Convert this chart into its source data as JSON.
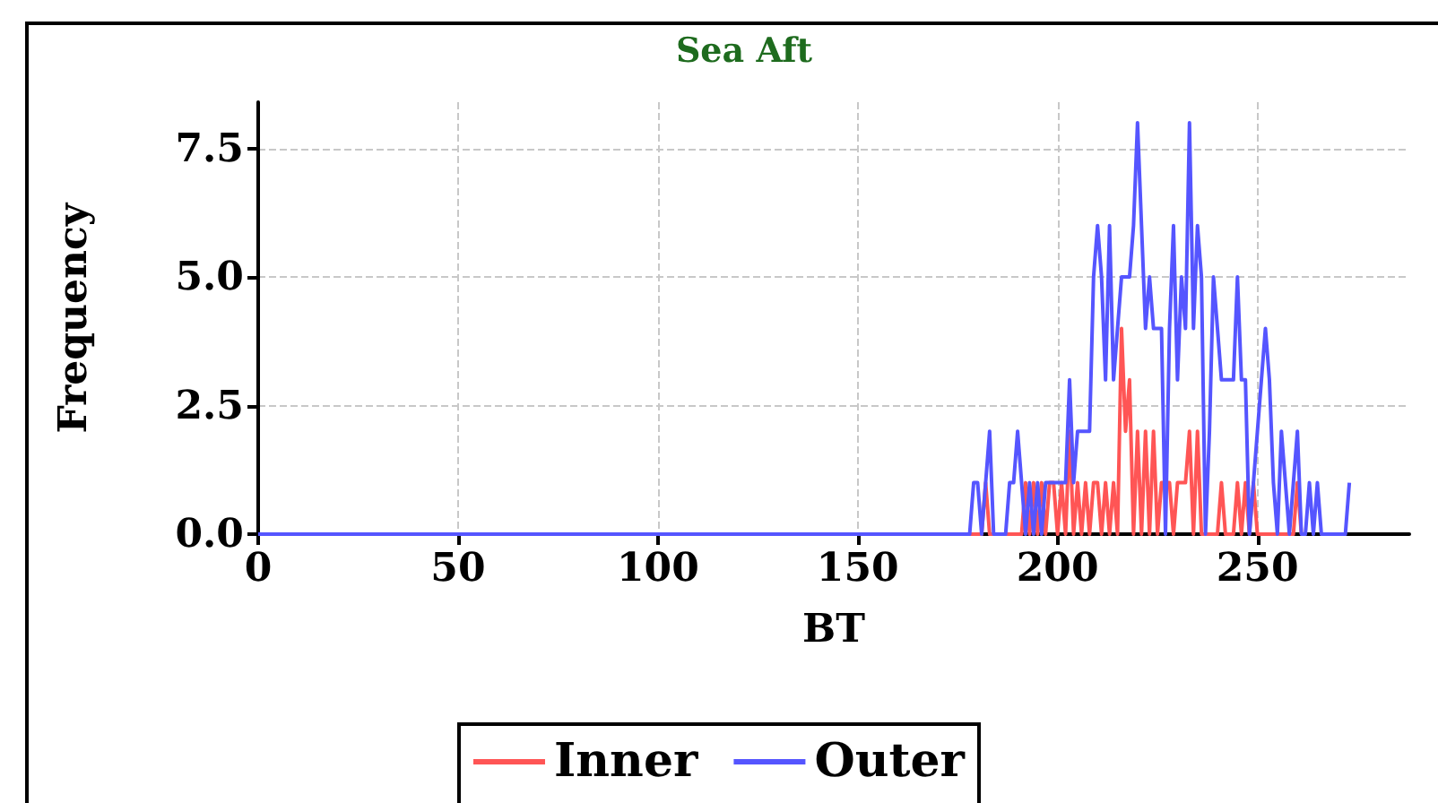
{
  "chart_data": {
    "type": "line",
    "title": "Sea Aft",
    "xlabel": "BT",
    "ylabel": "Frequency",
    "xlim": [
      0,
      288
    ],
    "xticks": [
      0,
      50,
      100,
      150,
      200,
      250
    ],
    "ylim": [
      0,
      8.4
    ],
    "yticks": [
      {
        "value": 0,
        "label": "0.0"
      },
      {
        "value": 2.5,
        "label": "2.5"
      },
      {
        "value": 5,
        "label": "5.0"
      },
      {
        "value": 7.5,
        "label": "7.5"
      }
    ],
    "grid": true,
    "legend": "bottom",
    "marker": "none",
    "line_style": "solid",
    "series": [
      {
        "name": "Inner",
        "color": "#ff5555",
        "x": [
          0,
          181,
          182,
          183,
          184,
          185,
          186,
          187,
          188,
          189,
          190,
          191,
          192,
          193,
          194,
          195,
          196,
          197,
          198,
          199,
          200,
          201,
          202,
          203,
          204,
          205,
          206,
          207,
          208,
          209,
          210,
          211,
          212,
          213,
          214,
          215,
          216,
          217,
          218,
          219,
          220,
          221,
          222,
          223,
          224,
          225,
          226,
          227,
          228,
          229,
          230,
          231,
          232,
          233,
          234,
          235,
          236,
          237,
          238,
          239,
          240,
          241,
          242,
          243,
          244,
          245,
          246,
          247,
          248,
          249,
          250,
          251,
          252,
          253,
          254,
          255,
          256,
          257,
          258,
          259,
          260,
          261
        ],
        "values": [
          0,
          0,
          1,
          0,
          0,
          0,
          0,
          0,
          0,
          0,
          0,
          0,
          1,
          0,
          1,
          0,
          1,
          0,
          1,
          1,
          0,
          1,
          0,
          2,
          0,
          1,
          0,
          1,
          0,
          1,
          1,
          0,
          1,
          0,
          1,
          0,
          4,
          2,
          3,
          0,
          2,
          0,
          2,
          0,
          2,
          0,
          1,
          1,
          1,
          0,
          1,
          1,
          1,
          2,
          0,
          2,
          0,
          0,
          0,
          0,
          0,
          1,
          0,
          0,
          0,
          1,
          0,
          1,
          0,
          1,
          0,
          0,
          0,
          0,
          0,
          0,
          0,
          0,
          0,
          0,
          1,
          0
        ]
      },
      {
        "name": "Outer",
        "color": "#5555ff",
        "x": [
          0,
          177,
          178,
          179,
          180,
          181,
          182,
          183,
          184,
          185,
          186,
          187,
          188,
          189,
          190,
          191,
          192,
          193,
          194,
          195,
          196,
          197,
          198,
          199,
          200,
          201,
          202,
          203,
          204,
          205,
          206,
          207,
          208,
          209,
          210,
          211,
          212,
          213,
          214,
          215,
          216,
          217,
          218,
          219,
          220,
          221,
          222,
          223,
          224,
          225,
          226,
          227,
          228,
          229,
          230,
          231,
          232,
          233,
          234,
          235,
          236,
          237,
          238,
          239,
          240,
          241,
          242,
          243,
          244,
          245,
          246,
          247,
          248,
          249,
          250,
          251,
          252,
          253,
          254,
          255,
          256,
          257,
          258,
          259,
          260,
          261,
          262,
          263,
          264,
          265,
          266,
          267,
          268,
          269,
          270,
          271,
          272,
          273
        ],
        "values": [
          0,
          0,
          0,
          1,
          1,
          0,
          1,
          2,
          0,
          0,
          0,
          0,
          1,
          1,
          2,
          1,
          0,
          1,
          0,
          1,
          0,
          1,
          1,
          1,
          1,
          1,
          1,
          3,
          1,
          2,
          2,
          2,
          2,
          5,
          6,
          5,
          3,
          6,
          3,
          4,
          5,
          5,
          5,
          6,
          8,
          6,
          4,
          5,
          4,
          4,
          4,
          0,
          4,
          6,
          3,
          5,
          4,
          8,
          4,
          6,
          5,
          0,
          2,
          5,
          4,
          3,
          3,
          3,
          3,
          5,
          3,
          3,
          0,
          1,
          2,
          3,
          4,
          3,
          1,
          0,
          2,
          1,
          0,
          1,
          2,
          0,
          0,
          1,
          0,
          1,
          0,
          0,
          0,
          0,
          0,
          0,
          0,
          1
        ]
      }
    ]
  }
}
